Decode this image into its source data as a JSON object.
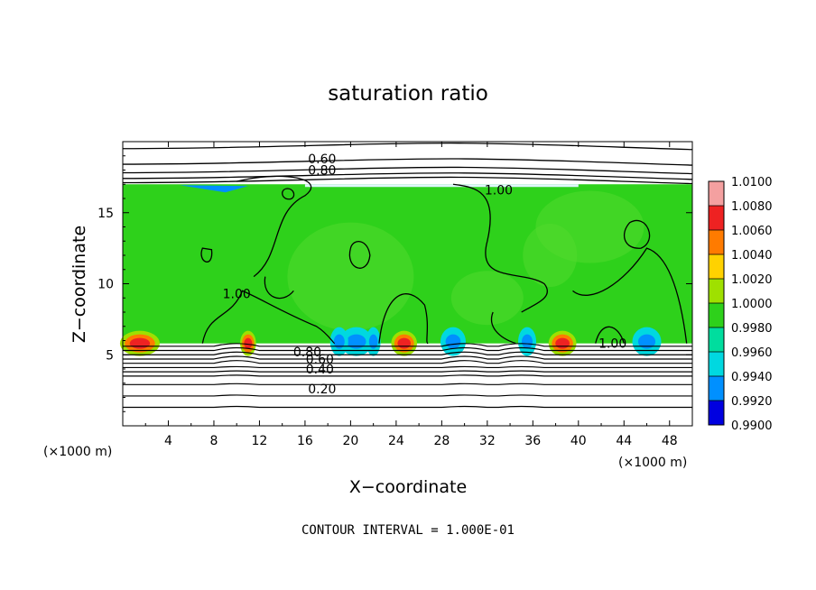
{
  "chart_data": {
    "type": "contour",
    "title": "saturation ratio",
    "xlabel": "X−coordinate",
    "ylabel": "Z−coordinate",
    "x_unit": "(×1000 m)",
    "z_unit": "(×1000 m)",
    "xlim": [
      0,
      50
    ],
    "ylim": [
      0,
      20
    ],
    "xticks": [
      4,
      8,
      12,
      16,
      20,
      24,
      28,
      32,
      36,
      40,
      44,
      48
    ],
    "yticks": [
      5,
      10,
      15
    ],
    "colorbar": {
      "levels": [
        "1.0100",
        "1.0080",
        "1.0060",
        "1.0040",
        "1.0020",
        "1.0000",
        "0.9980",
        "0.9960",
        "0.9940",
        "0.9920",
        "0.9900"
      ],
      "colors": [
        "#f4a0a0",
        "#ee2222",
        "#ff7b00",
        "#ffd200",
        "#9fe000",
        "#2ed11b",
        "#00dd9e",
        "#00d8e0",
        "#0090ff",
        "#0000e0",
        "#4b0082"
      ]
    },
    "contour_labels": [
      "0.60",
      "0.80",
      "1.00",
      "1.00",
      "1.00",
      "0.80",
      "0.60",
      "0.40",
      "0.20"
    ],
    "cloud_layer_z": [
      5.8,
      17.0
    ],
    "contour_interval": "CONTOUR INTERVAL = 1.000E-01"
  }
}
